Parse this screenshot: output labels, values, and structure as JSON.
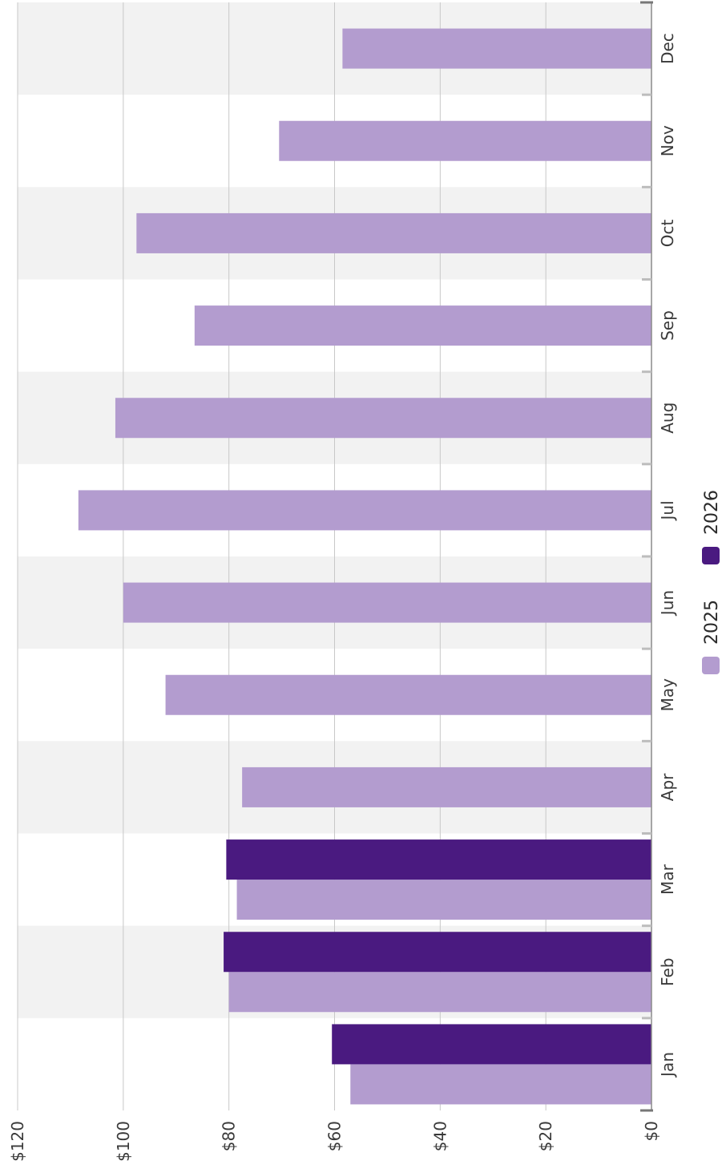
{
  "chart_data": {
    "type": "bar",
    "orientation": "horizontal-rotated",
    "categories": [
      "Jan",
      "Feb",
      "Mar",
      "Apr",
      "May",
      "Jun",
      "Jul",
      "Aug",
      "Sep",
      "Oct",
      "Nov",
      "Dec"
    ],
    "series": [
      {
        "name": "2025",
        "color": "#b39ccf",
        "values": [
          57,
          80,
          78.5,
          77.5,
          92,
          100,
          108.5,
          101.5,
          86.5,
          97.5,
          70.5,
          58.5
        ]
      },
      {
        "name": "2026",
        "color": "#4a1a80",
        "values": [
          60.5,
          81,
          80.5,
          null,
          null,
          null,
          null,
          null,
          null,
          null,
          null,
          null
        ]
      }
    ],
    "value_ticks": [
      "$0",
      "$20",
      "$40",
      "$60",
      "$80",
      "$100",
      "$120"
    ],
    "ylim": [
      0,
      120
    ],
    "grid": true,
    "legend_position": "bottom",
    "band_color": "#f2f2f2"
  }
}
